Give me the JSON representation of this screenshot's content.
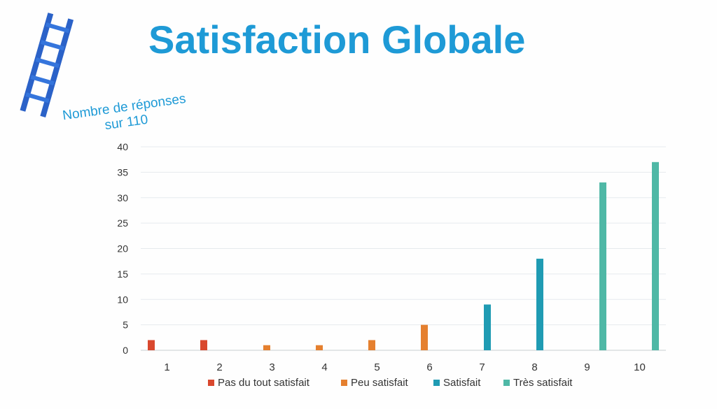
{
  "title": "Satisfaction Globale",
  "y_axis_label": "Nombre de réponses sur 110",
  "chart_data": {
    "type": "bar",
    "title": "Satisfaction Globale",
    "xlabel": "",
    "ylabel": "Nombre de réponses sur 110",
    "ylim": [
      0,
      40
    ],
    "yticks": [
      0,
      5,
      10,
      15,
      20,
      25,
      30,
      35,
      40
    ],
    "categories": [
      "1",
      "2",
      "3",
      "4",
      "5",
      "6",
      "7",
      "8",
      "9",
      "10"
    ],
    "grid": true,
    "legend_position": "bottom",
    "series": [
      {
        "name": "Pas du tout satisfait",
        "color": "#d9482e",
        "values": [
          2,
          2,
          null,
          null,
          null,
          null,
          null,
          null,
          null,
          null
        ]
      },
      {
        "name": "Peu satisfait",
        "color": "#e5802f",
        "values": [
          null,
          null,
          1,
          1,
          2,
          5,
          null,
          null,
          null,
          null
        ]
      },
      {
        "name": "Satisfait",
        "color": "#1f9bb3",
        "values": [
          null,
          null,
          null,
          null,
          null,
          null,
          9,
          18,
          null,
          null
        ]
      },
      {
        "name": "Très satisfait",
        "color": "#4fb8a6",
        "values": [
          null,
          null,
          null,
          null,
          null,
          null,
          null,
          null,
          33,
          37
        ]
      }
    ]
  }
}
